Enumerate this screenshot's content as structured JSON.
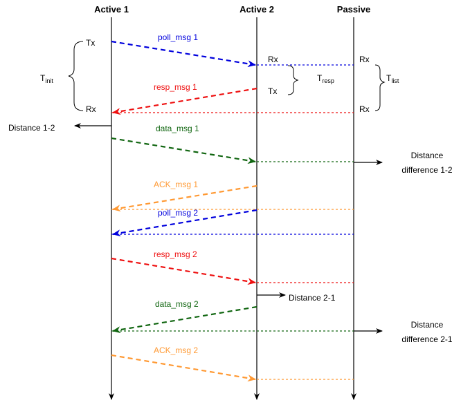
{
  "colors": {
    "blue": "#0000dd",
    "red": "#ee1111",
    "green": "#116611",
    "orange": "#ff9933",
    "black": "#000000"
  },
  "lanes": {
    "active1": "Active 1",
    "active2": "Active 2",
    "passive": "Passive"
  },
  "timing": {
    "tx_1": "Tx",
    "rx_1": "Rx",
    "rx_2": "Rx",
    "tx_2": "Tx",
    "rx_p1": "Rx",
    "rx_p2": "Rx",
    "t_init": {
      "main": "T",
      "sub": "init"
    },
    "t_resp": {
      "main": "T",
      "sub": "resp"
    },
    "t_list": {
      "main": "T",
      "sub": "list"
    }
  },
  "messages": {
    "poll_1": "poll_msg 1",
    "resp_1": "resp_msg 1",
    "data_1": "data_msg 1",
    "ack_1": "ACK_msg 1",
    "poll_2": "poll_msg 2",
    "resp_2": "resp_msg 2",
    "data_2": "data_msg 2",
    "ack_2": "ACK_msg 2"
  },
  "outputs": {
    "distance_12": "Distance 1-2",
    "distance_21": "Distance 2-1",
    "diff_12": [
      "Distance",
      "difference 1-2"
    ],
    "diff_21": [
      "Distance",
      "difference 2-1"
    ]
  }
}
